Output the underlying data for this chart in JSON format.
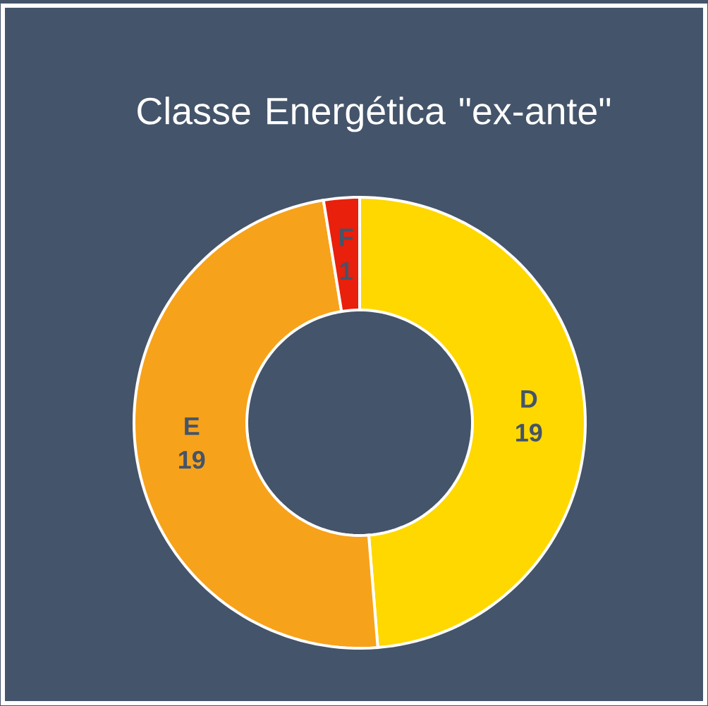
{
  "chart_data": {
    "type": "donut",
    "title": "Classe Energética \"ex-ante\"",
    "categories": [
      "D",
      "E",
      "F"
    ],
    "values": [
      19,
      19,
      1
    ],
    "colors": [
      "#ffd800",
      "#f7a21b",
      "#e8200c"
    ],
    "data_labels": true
  }
}
